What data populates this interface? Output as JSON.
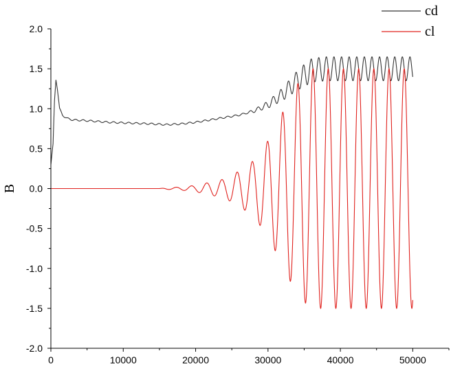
{
  "chart_data": {
    "type": "line",
    "title": "",
    "xlabel": "",
    "ylabel": "B",
    "xlim": [
      0,
      55000
    ],
    "ylim": [
      -2.0,
      2.0
    ],
    "x_ticks": [
      0,
      10000,
      20000,
      30000,
      40000,
      50000
    ],
    "x_tick_labels": [
      "0",
      "10000",
      "20000",
      "30000",
      "40000",
      "50000"
    ],
    "y_ticks": [
      -2.0,
      -1.5,
      -1.0,
      -0.5,
      0.0,
      0.5,
      1.0,
      1.5,
      2.0
    ],
    "y_tick_labels": [
      "-2.0",
      "-1.5",
      "-1.0",
      "-0.5",
      "0.0",
      "0.5",
      "1.0",
      "1.5",
      "2.0"
    ],
    "grid": false,
    "legend_position": "top-right",
    "series": [
      {
        "name": "cd",
        "color": "#333333",
        "points": [
          [
            0,
            0.3
          ],
          [
            300,
            0.55
          ],
          [
            500,
            1.1
          ],
          [
            700,
            1.37
          ],
          [
            900,
            1.25
          ],
          [
            1200,
            1.0
          ],
          [
            1600,
            0.92
          ],
          [
            2200,
            0.88
          ],
          [
            3000,
            0.86
          ],
          [
            5000,
            0.85
          ],
          [
            8000,
            0.83
          ],
          [
            11000,
            0.82
          ],
          [
            14000,
            0.81
          ],
          [
            16000,
            0.8
          ],
          [
            18000,
            0.81
          ],
          [
            20000,
            0.83
          ],
          [
            22000,
            0.86
          ],
          [
            24000,
            0.89
          ],
          [
            26000,
            0.92
          ],
          [
            28000,
            0.97
          ],
          [
            30000,
            1.05
          ],
          [
            32000,
            1.18
          ],
          [
            34000,
            1.35
          ],
          [
            36000,
            1.48
          ],
          [
            38000,
            1.5
          ],
          [
            40000,
            1.5
          ],
          [
            45000,
            1.5
          ],
          [
            50000,
            1.5
          ]
        ],
        "oscillation": [
          [
            27000,
            0.01
          ],
          [
            29000,
            0.03
          ],
          [
            31000,
            0.06
          ],
          [
            33000,
            0.1
          ],
          [
            35000,
            0.14
          ],
          [
            37000,
            0.15
          ],
          [
            50000,
            0.15
          ]
        ],
        "period": 1050,
        "x_start": 0,
        "x_end": 50000
      },
      {
        "name": "cl",
        "color": "#e0201c",
        "points": [
          [
            0,
            0.0
          ],
          [
            50000,
            0.0
          ]
        ],
        "oscillation": [
          [
            15000,
            0.0
          ],
          [
            16000,
            0.01
          ],
          [
            18000,
            0.02
          ],
          [
            20000,
            0.04
          ],
          [
            22000,
            0.08
          ],
          [
            24000,
            0.12
          ],
          [
            26000,
            0.22
          ],
          [
            28000,
            0.35
          ],
          [
            30000,
            0.6
          ],
          [
            31000,
            0.78
          ],
          [
            32000,
            0.95
          ],
          [
            33000,
            1.15
          ],
          [
            34000,
            1.3
          ],
          [
            35000,
            1.42
          ],
          [
            36000,
            1.5
          ],
          [
            50000,
            1.5
          ]
        ],
        "period": 2100,
        "x_start": 0,
        "x_end": 50000
      }
    ]
  }
}
